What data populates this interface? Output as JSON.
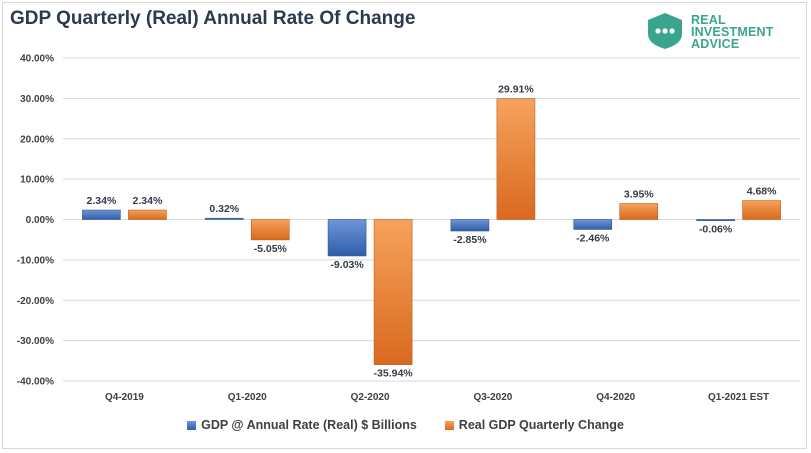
{
  "title": "GDP Quarterly (Real) Annual Rate Of Change",
  "logo": {
    "line1": "REAL",
    "line2": "INVESTMENT",
    "line3": "ADVICE"
  },
  "colors": {
    "series1": "#4472c4",
    "series2": "#ed7d31",
    "grid": "#d9d9d9",
    "logo": "#3aa58e"
  },
  "chart_data": {
    "type": "bar",
    "title": "GDP Quarterly (Real) Annual Rate Of Change",
    "categories": [
      "Q4-2019",
      "Q1-2020",
      "Q2-2020",
      "Q3-2020",
      "Q4-2020",
      "Q1-2021 EST"
    ],
    "series": [
      {
        "name": "GDP @ Annual Rate (Real) $ Billions",
        "values": [
          2.34,
          0.32,
          -9.03,
          -2.85,
          -2.46,
          -0.06
        ],
        "labels": [
          "2.34%",
          "0.32%",
          "-9.03%",
          "-2.85%",
          "-2.46%",
          "-0.06%"
        ]
      },
      {
        "name": "Real GDP Quarterly Change",
        "values": [
          2.34,
          -5.05,
          -35.94,
          29.91,
          3.95,
          4.68
        ],
        "labels": [
          "2.34%",
          "-5.05%",
          "-35.94%",
          "29.91%",
          "3.95%",
          "4.68%"
        ]
      }
    ],
    "yticks": [
      "40.00%",
      "30.00%",
      "20.00%",
      "10.00%",
      "0.00%",
      "-10.00%",
      "-20.00%",
      "-30.00%",
      "-40.00%"
    ],
    "ylim": [
      -40,
      40
    ],
    "grid": true,
    "legend": "bottom"
  }
}
